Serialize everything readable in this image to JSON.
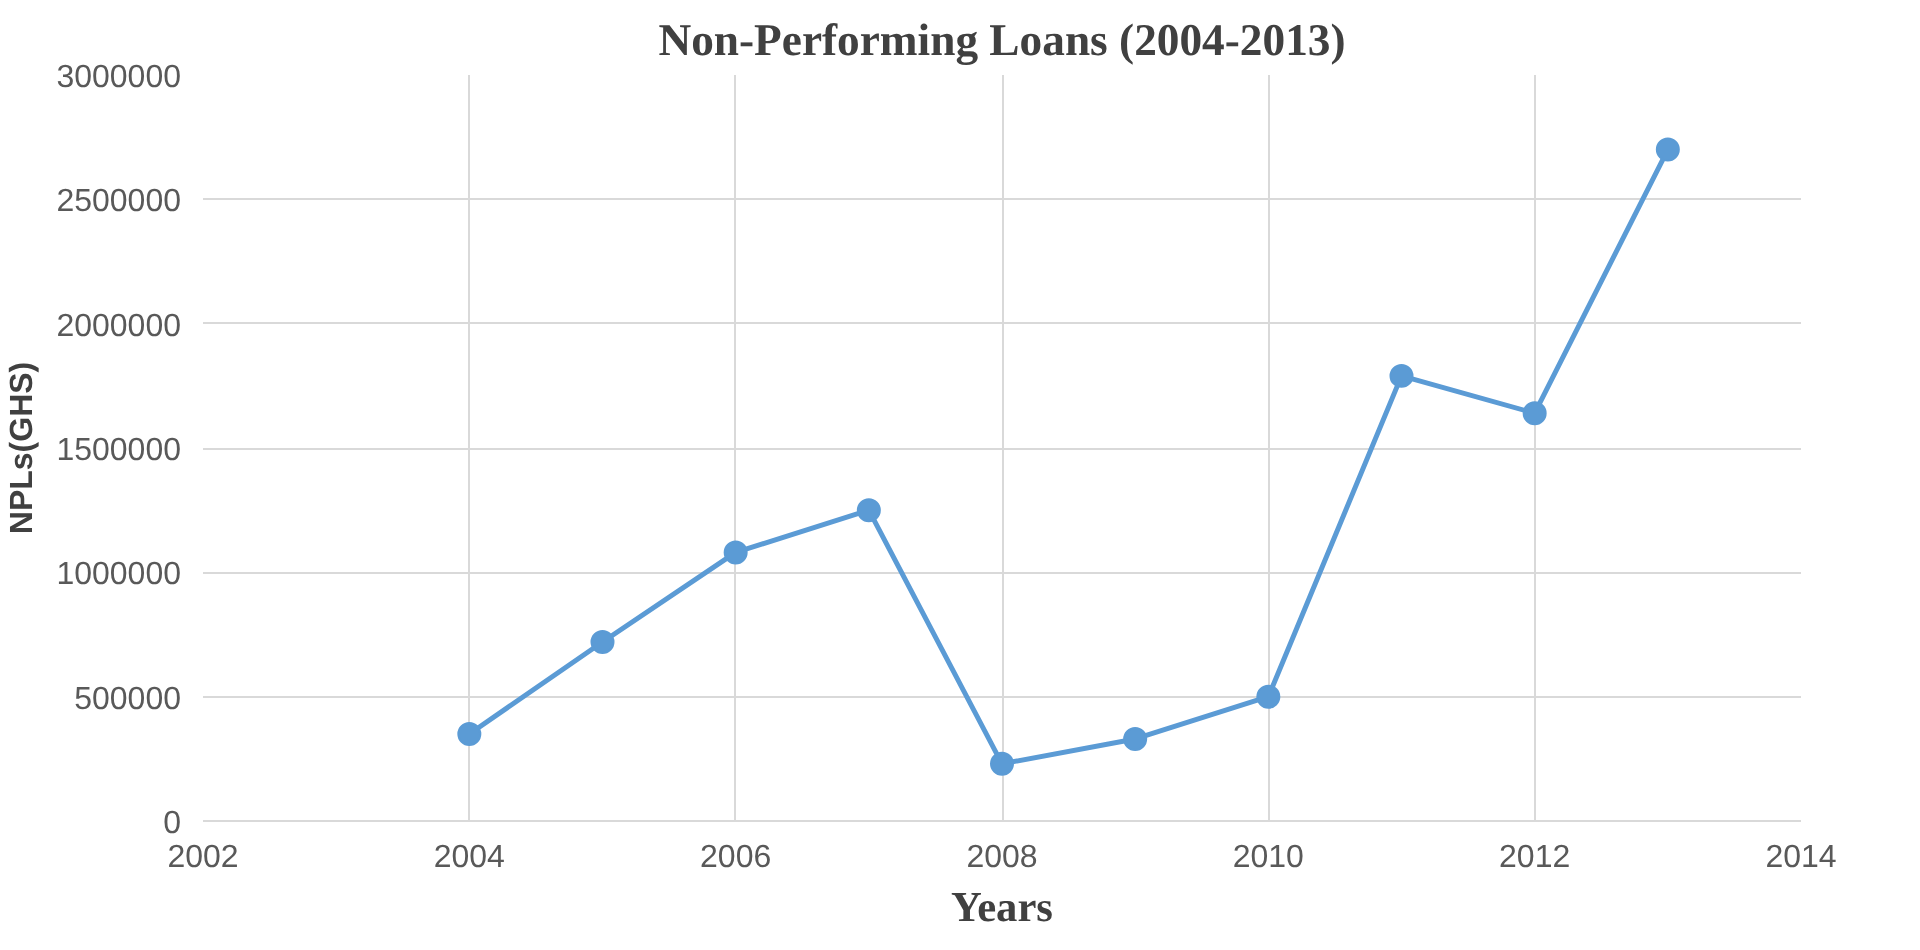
{
  "chart_data": {
    "type": "line",
    "title": "Non-Performing Loans (2004-2013)",
    "xlabel": "Years",
    "ylabel": "NPLs(GHS)",
    "x": [
      2004,
      2005,
      2006,
      2007,
      2008,
      2009,
      2010,
      2011,
      2012,
      2013
    ],
    "series": [
      {
        "color": "#5b9bd5",
        "values": [
          350000,
          720000,
          1080000,
          1250000,
          230000,
          330000,
          500000,
          1790000,
          1640000,
          2700000
        ]
      }
    ],
    "xlim": [
      2002,
      2014
    ],
    "xticks": [
      2002,
      2004,
      2006,
      2008,
      2010,
      2012,
      2014
    ],
    "ylim": [
      0,
      3000000
    ],
    "yticks": [
      0,
      500000,
      1000000,
      1500000,
      2000000,
      2500000,
      3000000
    ],
    "grid": true,
    "marker": "circle",
    "line_style": "solid"
  }
}
